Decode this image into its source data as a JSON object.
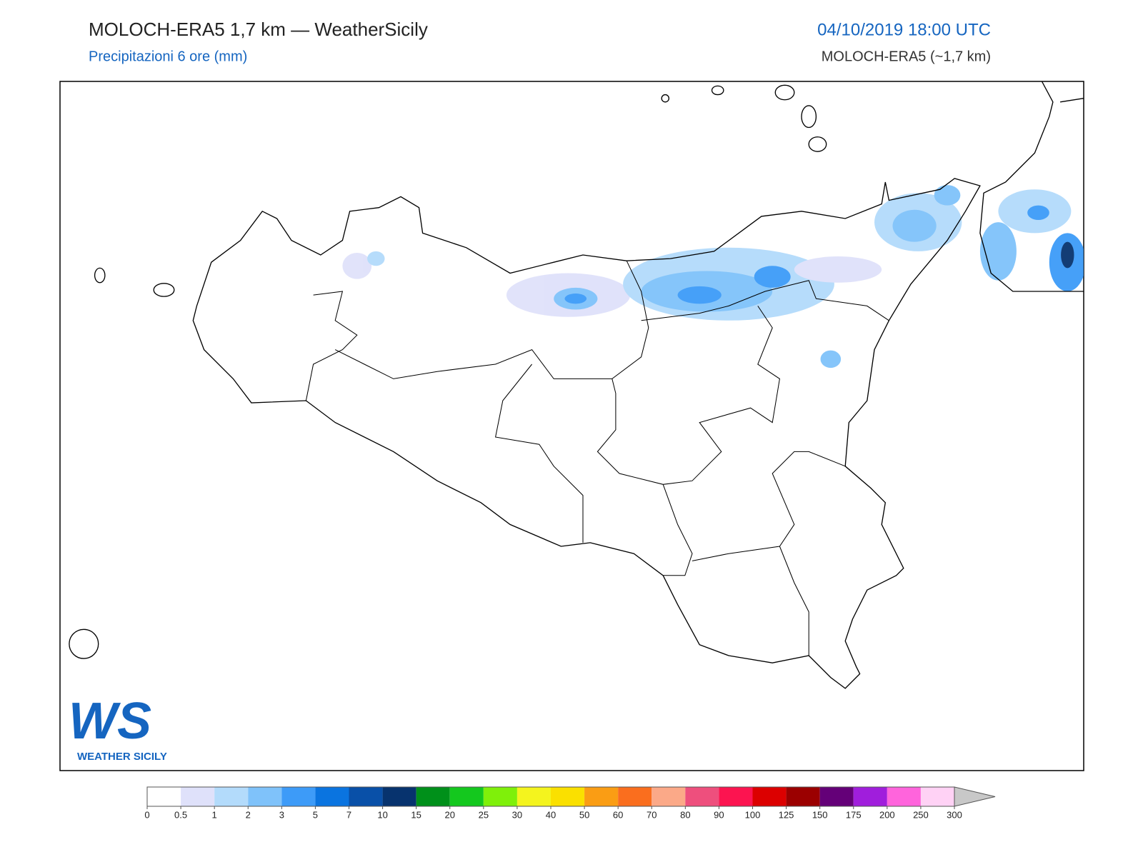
{
  "header": {
    "title": "MOLOCH-ERA5 1,7 km — WeatherSicily",
    "subtitle": "Precipitazioni 6 ore (mm)",
    "datetime": "04/10/2019 18:00 UTC",
    "model": "MOLOCH-ERA5 (~1,7 km)"
  },
  "colorbar": {
    "bounds": [
      0,
      0.5,
      1,
      2,
      3,
      5,
      7,
      10,
      15,
      20,
      25,
      30,
      40,
      50,
      60,
      70,
      80,
      90,
      100,
      125,
      150,
      175,
      200,
      250,
      300
    ],
    "colors": [
      "#ffffff",
      "#dfe1fa",
      "#b3dbfb",
      "#7fc2fa",
      "#3d9bf8",
      "#0a74e0",
      "#0950a8",
      "#07336e",
      "#00901a",
      "#14c81e",
      "#7ff00a",
      "#f4f41e",
      "#fae000",
      "#fa9d14",
      "#fa6e1e",
      "#fba988",
      "#ee4f7d",
      "#fc1450",
      "#dc0000",
      "#9b0000",
      "#640078",
      "#a01edc",
      "#ff64dc",
      "#ffd2f5"
    ],
    "over_color": "#c8c8c8"
  },
  "logo": {
    "mark": "WS",
    "text": "WEATHER SICILY"
  }
}
